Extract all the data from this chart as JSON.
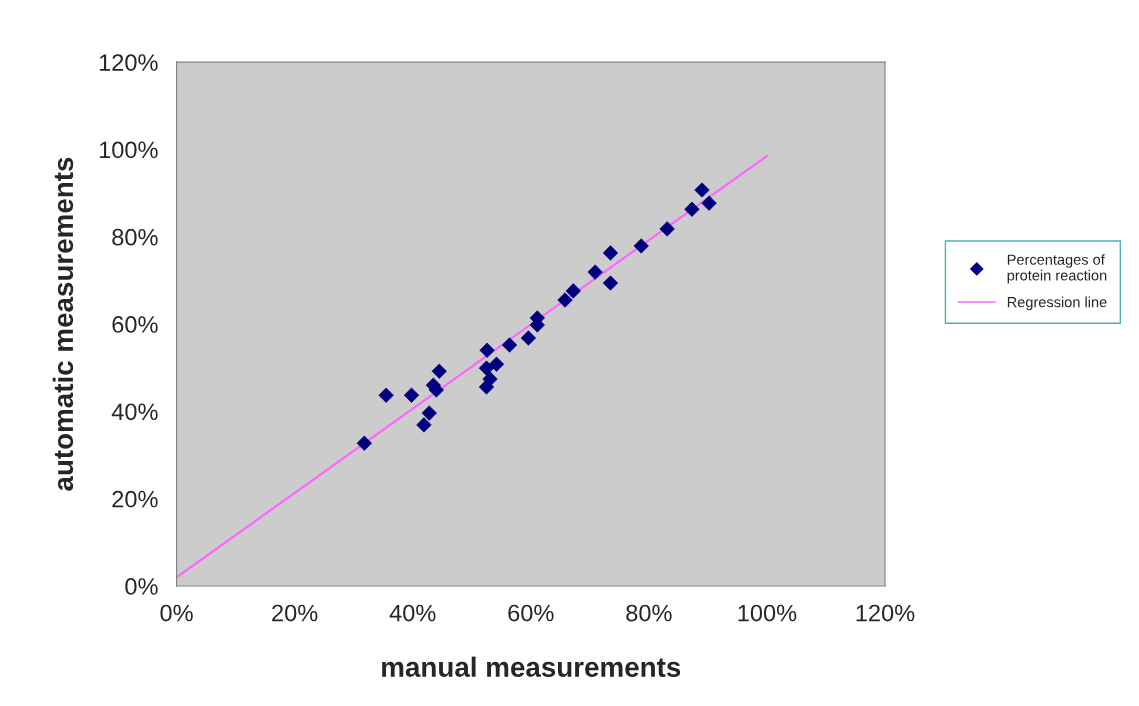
{
  "chart_data": {
    "type": "scatter",
    "xlabel": "manual measurements",
    "ylabel": "automatic measurements",
    "xlim": [
      0,
      120
    ],
    "ylim": [
      0,
      120
    ],
    "xticks": [
      {
        "value": 0,
        "label": "0%"
      },
      {
        "value": 20,
        "label": "20%"
      },
      {
        "value": 40,
        "label": "40%"
      },
      {
        "value": 60,
        "label": "60%"
      },
      {
        "value": 80,
        "label": "80%"
      },
      {
        "value": 100,
        "label": "100%"
      },
      {
        "value": 120,
        "label": "120%"
      }
    ],
    "yticks": [
      {
        "value": 0,
        "label": "0%"
      },
      {
        "value": 20,
        "label": "20%"
      },
      {
        "value": 40,
        "label": "40%"
      },
      {
        "value": 60,
        "label": "60%"
      },
      {
        "value": 80,
        "label": "80%"
      },
      {
        "value": 100,
        "label": "100%"
      },
      {
        "value": 120,
        "label": "120%"
      }
    ],
    "legend": "right",
    "series": [
      {
        "name": "Percentages of\nprotein reaction",
        "marker": "diamond",
        "color": "#000080",
        "x": [
          31.8,
          35.5,
          39.8,
          41.9,
          42.8,
          43.5,
          44.0,
          44.5,
          52.6,
          52.5,
          54.2,
          53.1,
          52.5,
          56.4,
          59.6,
          61.1,
          61.1,
          65.8,
          67.2,
          70.9,
          73.5,
          73.5,
          78.7,
          83.1,
          87.3,
          89.0,
          90.2
        ],
        "values": [
          32.7,
          43.7,
          43.7,
          36.9,
          39.6,
          46.0,
          44.9,
          49.2,
          54.0,
          49.9,
          50.8,
          47.4,
          45.6,
          55.2,
          56.8,
          61.4,
          59.8,
          65.5,
          67.6,
          71.9,
          76.3,
          69.4,
          77.9,
          81.8,
          86.3,
          90.7,
          87.7
        ]
      },
      {
        "name": "Regression line",
        "type": "line",
        "marker": "none",
        "line_style": "solid",
        "color": "#ff66ff",
        "x": [
          0,
          100
        ],
        "values": [
          2,
          98.5
        ]
      }
    ]
  }
}
